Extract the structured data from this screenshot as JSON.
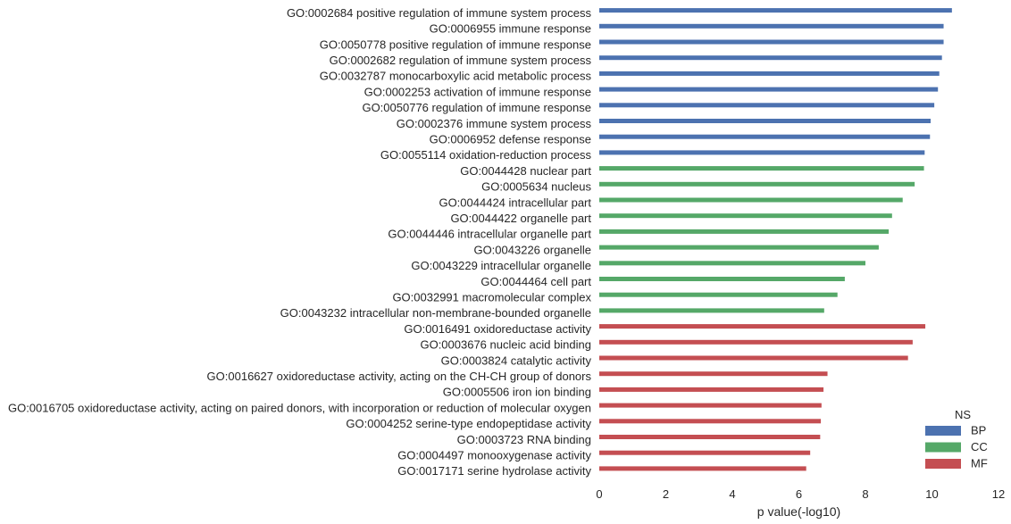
{
  "chart_data": {
    "type": "bar",
    "orientation": "horizontal",
    "xlabel": "p value(-log10)",
    "ylabel": "",
    "xlim": [
      0,
      12
    ],
    "xticks": [
      0,
      2,
      4,
      6,
      8,
      10,
      12
    ],
    "grid": false,
    "legend": {
      "title": "NS",
      "placement": "bottom-right",
      "entries": [
        {
          "name": "BP",
          "color": "#4c72b0"
        },
        {
          "name": "CC",
          "color": "#55a868"
        },
        {
          "name": "MF",
          "color": "#c44e52"
        }
      ]
    },
    "categories": [
      {
        "label": "GO:0002684 positive regulation of immune system process",
        "value": 10.6,
        "ns": "BP"
      },
      {
        "label": "GO:0006955 immune response",
        "value": 10.35,
        "ns": "BP"
      },
      {
        "label": "GO:0050778 positive regulation of immune response",
        "value": 10.35,
        "ns": "BP"
      },
      {
        "label": "GO:0002682 regulation of immune system process",
        "value": 10.3,
        "ns": "BP"
      },
      {
        "label": "GO:0032787 monocarboxylic acid metabolic process",
        "value": 10.22,
        "ns": "BP"
      },
      {
        "label": "GO:0002253 activation of immune response",
        "value": 10.18,
        "ns": "BP"
      },
      {
        "label": "GO:0050776 regulation of immune response",
        "value": 10.07,
        "ns": "BP"
      },
      {
        "label": "GO:0002376 immune system process",
        "value": 9.96,
        "ns": "BP"
      },
      {
        "label": "GO:0006952 defense response",
        "value": 9.94,
        "ns": "BP"
      },
      {
        "label": "GO:0055114 oxidation-reduction process",
        "value": 9.78,
        "ns": "BP"
      },
      {
        "label": "GO:0044428 nuclear part",
        "value": 9.76,
        "ns": "CC"
      },
      {
        "label": "GO:0005634 nucleus",
        "value": 9.48,
        "ns": "CC"
      },
      {
        "label": "GO:0044424 intracellular part",
        "value": 9.12,
        "ns": "CC"
      },
      {
        "label": "GO:0044422 organelle part",
        "value": 8.8,
        "ns": "CC"
      },
      {
        "label": "GO:0044446 intracellular organelle part",
        "value": 8.7,
        "ns": "CC"
      },
      {
        "label": "GO:0043226 organelle",
        "value": 8.4,
        "ns": "CC"
      },
      {
        "label": "GO:0043229 intracellular organelle",
        "value": 8.0,
        "ns": "CC"
      },
      {
        "label": "GO:0044464 cell part",
        "value": 7.38,
        "ns": "CC"
      },
      {
        "label": "GO:0032991 macromolecular complex",
        "value": 7.16,
        "ns": "CC"
      },
      {
        "label": "GO:0043232 intracellular non-membrane-bounded organelle",
        "value": 6.76,
        "ns": "CC"
      },
      {
        "label": "GO:0016491 oxidoreductase activity",
        "value": 9.8,
        "ns": "MF"
      },
      {
        "label": "GO:0003676 nucleic acid binding",
        "value": 9.42,
        "ns": "MF"
      },
      {
        "label": "GO:0003824 catalytic activity",
        "value": 9.28,
        "ns": "MF"
      },
      {
        "label": "GO:0016627 oxidoreductase activity, acting on the CH-CH group of donors",
        "value": 6.86,
        "ns": "MF"
      },
      {
        "label": "GO:0005506 iron ion binding",
        "value": 6.74,
        "ns": "MF"
      },
      {
        "label": "GO:0016705 oxidoreductase activity, acting on paired donors, with incorporation or reduction of molecular oxygen",
        "value": 6.68,
        "ns": "MF"
      },
      {
        "label": "GO:0004252 serine-type endopeptidase activity",
        "value": 6.66,
        "ns": "MF"
      },
      {
        "label": "GO:0003723 RNA binding",
        "value": 6.64,
        "ns": "MF"
      },
      {
        "label": "GO:0004497 monooxygenase activity",
        "value": 6.34,
        "ns": "MF"
      },
      {
        "label": "GO:0017171 serine hydrolase activity",
        "value": 6.22,
        "ns": "MF"
      }
    ]
  }
}
